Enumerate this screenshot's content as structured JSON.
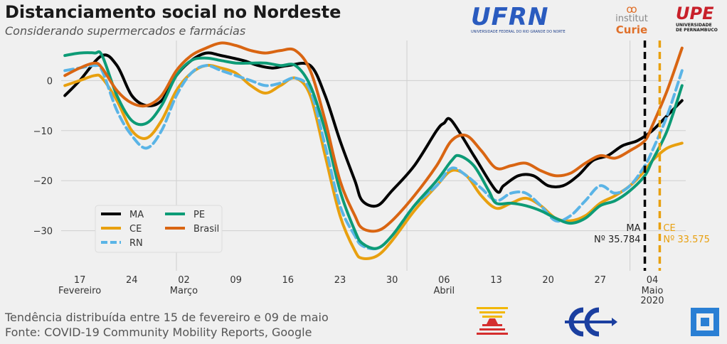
{
  "header": {
    "title": "Distanciamento social no Nordeste",
    "subtitle": "Considerando supermercados e farmácias"
  },
  "footer": {
    "line1": "Tendência distribuída entre 15 de fevereiro e 09 de maio",
    "line2": "Fonte: COVID-19 Community Mobility Reports, Google"
  },
  "logos": {
    "ufrn": {
      "mark": "UFRN",
      "caption": "UNIVERSIDADE FEDERAL DO RIO GRANDE DO NORTE"
    },
    "curie": {
      "icon": "ꝏ",
      "line1": "institut",
      "line2": "Curie"
    },
    "upe": {
      "mark": "UPE",
      "line1": "UNIVERSIDADE",
      "line2": "DE PERNAMBUCO"
    }
  },
  "chart_data": {
    "type": "line",
    "title": "Distanciamento social no Nordeste",
    "xlim": [
      -0.5,
      83.5
    ],
    "ylim": [
      -38,
      8
    ],
    "yticks": [
      0,
      -10,
      -20,
      -30
    ],
    "ytick_labels": [
      "0",
      "−10",
      "−20",
      "−30"
    ],
    "xticks": [
      {
        "day": 2,
        "label": "17",
        "sub": "Fevereiro"
      },
      {
        "day": 9,
        "label": "24",
        "sub": ""
      },
      {
        "day": 16,
        "label": "02",
        "sub": "Março"
      },
      {
        "day": 23,
        "label": "09",
        "sub": ""
      },
      {
        "day": 30,
        "label": "16",
        "sub": ""
      },
      {
        "day": 37,
        "label": "23",
        "sub": ""
      },
      {
        "day": 44,
        "label": "30",
        "sub": ""
      },
      {
        "day": 51,
        "label": "06",
        "sub": "Abril"
      },
      {
        "day": 58,
        "label": "13",
        "sub": ""
      },
      {
        "day": 65,
        "label": "20",
        "sub": ""
      },
      {
        "day": 72,
        "label": "27",
        "sub": ""
      },
      {
        "day": 79,
        "label": "04",
        "sub": "Maio\n2020"
      }
    ],
    "month_dividers": [
      15,
      46,
      76
    ],
    "x_start": "2020-02-15",
    "series": [
      {
        "name": "MA",
        "color": "#000000",
        "dash": false,
        "points": [
          [
            0,
            -3
          ],
          [
            2,
            0
          ],
          [
            5,
            5
          ],
          [
            7,
            3
          ],
          [
            9,
            -3
          ],
          [
            11,
            -5
          ],
          [
            13,
            -4
          ],
          [
            15,
            1
          ],
          [
            17,
            4
          ],
          [
            19,
            5.5
          ],
          [
            21,
            5
          ],
          [
            24,
            4
          ],
          [
            26,
            3
          ],
          [
            28,
            2.5
          ],
          [
            30,
            3
          ],
          [
            33,
            3
          ],
          [
            35,
            -3
          ],
          [
            37,
            -12
          ],
          [
            39,
            -20
          ],
          [
            40,
            -24
          ],
          [
            42,
            -25
          ],
          [
            44,
            -22
          ],
          [
            47,
            -17
          ],
          [
            50,
            -10
          ],
          [
            51,
            -8.5
          ],
          [
            52,
            -8
          ],
          [
            55,
            -15
          ],
          [
            58,
            -22
          ],
          [
            59,
            -21
          ],
          [
            61,
            -19
          ],
          [
            63,
            -19
          ],
          [
            65,
            -21
          ],
          [
            67,
            -21
          ],
          [
            69,
            -19
          ],
          [
            71,
            -16
          ],
          [
            73,
            -15
          ],
          [
            75,
            -13
          ],
          [
            77,
            -12
          ],
          [
            79,
            -10
          ],
          [
            81,
            -7
          ],
          [
            83,
            -4
          ]
        ]
      },
      {
        "name": "CE",
        "color": "#e8a00f",
        "dash": false,
        "points": [
          [
            0,
            -1
          ],
          [
            2,
            0
          ],
          [
            4,
            1
          ],
          [
            5,
            0.5
          ],
          [
            7,
            -4
          ],
          [
            9,
            -10
          ],
          [
            11,
            -11.5
          ],
          [
            13,
            -8
          ],
          [
            15,
            -2
          ],
          [
            17,
            1.5
          ],
          [
            19,
            3
          ],
          [
            21,
            2.5
          ],
          [
            23,
            1.5
          ],
          [
            25,
            -1
          ],
          [
            27,
            -2.5
          ],
          [
            29,
            -1
          ],
          [
            31,
            0.5
          ],
          [
            33,
            -3
          ],
          [
            35,
            -15
          ],
          [
            37,
            -27
          ],
          [
            39,
            -34
          ],
          [
            40,
            -35.5
          ],
          [
            42,
            -35
          ],
          [
            44,
            -32
          ],
          [
            47,
            -26
          ],
          [
            50,
            -21
          ],
          [
            52,
            -18
          ],
          [
            54,
            -19
          ],
          [
            56,
            -23
          ],
          [
            58,
            -25.5
          ],
          [
            60,
            -24.5
          ],
          [
            62,
            -23.5
          ],
          [
            64,
            -25
          ],
          [
            66,
            -27.5
          ],
          [
            68,
            -28
          ],
          [
            70,
            -27
          ],
          [
            72,
            -24.5
          ],
          [
            74,
            -23
          ],
          [
            76,
            -21
          ],
          [
            78,
            -18
          ],
          [
            79,
            -16
          ],
          [
            81,
            -13.5
          ],
          [
            83,
            -12.5
          ]
        ]
      },
      {
        "name": "RN",
        "color": "#5ab4e6",
        "dash": true,
        "points": [
          [
            0,
            2
          ],
          [
            2,
            2.5
          ],
          [
            4,
            3
          ],
          [
            5,
            2
          ],
          [
            7,
            -6
          ],
          [
            9,
            -11
          ],
          [
            11,
            -13.5
          ],
          [
            13,
            -10
          ],
          [
            15,
            -3
          ],
          [
            17,
            1.5
          ],
          [
            19,
            3
          ],
          [
            21,
            2
          ],
          [
            23,
            1
          ],
          [
            25,
            0
          ],
          [
            27,
            -1
          ],
          [
            29,
            -0.5
          ],
          [
            31,
            0.5
          ],
          [
            33,
            -2
          ],
          [
            35,
            -13
          ],
          [
            37,
            -25
          ],
          [
            39,
            -31
          ],
          [
            40,
            -33
          ],
          [
            42,
            -33.5
          ],
          [
            44,
            -31
          ],
          [
            47,
            -25
          ],
          [
            50,
            -21
          ],
          [
            52,
            -17.5
          ],
          [
            54,
            -19
          ],
          [
            56,
            -21.5
          ],
          [
            58,
            -24
          ],
          [
            60,
            -22.5
          ],
          [
            62,
            -22.5
          ],
          [
            64,
            -25
          ],
          [
            66,
            -28
          ],
          [
            68,
            -27
          ],
          [
            70,
            -24
          ],
          [
            72,
            -21
          ],
          [
            74,
            -22.5
          ],
          [
            76,
            -21
          ],
          [
            78,
            -17
          ],
          [
            79,
            -14
          ],
          [
            81,
            -7
          ],
          [
            83,
            2
          ]
        ]
      },
      {
        "name": "PE",
        "color": "#0d9b76",
        "dash": false,
        "points": [
          [
            0,
            5
          ],
          [
            2,
            5.5
          ],
          [
            4,
            5.5
          ],
          [
            5,
            5
          ],
          [
            7,
            -3
          ],
          [
            9,
            -8
          ],
          [
            11,
            -8.5
          ],
          [
            13,
            -5
          ],
          [
            15,
            1
          ],
          [
            17,
            4
          ],
          [
            19,
            4.5
          ],
          [
            21,
            4
          ],
          [
            23,
            3.5
          ],
          [
            25,
            3.5
          ],
          [
            27,
            3.5
          ],
          [
            29,
            3
          ],
          [
            31,
            3
          ],
          [
            33,
            -1
          ],
          [
            35,
            -10
          ],
          [
            37,
            -22
          ],
          [
            39,
            -30
          ],
          [
            40,
            -32.5
          ],
          [
            42,
            -33.5
          ],
          [
            44,
            -31
          ],
          [
            47,
            -25
          ],
          [
            50,
            -20
          ],
          [
            52,
            -16
          ],
          [
            53,
            -15
          ],
          [
            55,
            -17
          ],
          [
            57,
            -22
          ],
          [
            58,
            -24.5
          ],
          [
            60,
            -24.5
          ],
          [
            62,
            -25
          ],
          [
            64,
            -26
          ],
          [
            66,
            -27.5
          ],
          [
            68,
            -28.5
          ],
          [
            70,
            -27.5
          ],
          [
            72,
            -25
          ],
          [
            74,
            -24
          ],
          [
            76,
            -22
          ],
          [
            78,
            -19
          ],
          [
            79,
            -16
          ],
          [
            81,
            -10
          ],
          [
            83,
            -1
          ]
        ]
      },
      {
        "name": "Brasil",
        "color": "#d96512",
        "dash": false,
        "points": [
          [
            0,
            1
          ],
          [
            2,
            2.5
          ],
          [
            4,
            3.5
          ],
          [
            5,
            2.5
          ],
          [
            7,
            -2
          ],
          [
            9,
            -4.5
          ],
          [
            11,
            -5
          ],
          [
            13,
            -3
          ],
          [
            15,
            2
          ],
          [
            17,
            5
          ],
          [
            19,
            6.5
          ],
          [
            21,
            7.5
          ],
          [
            23,
            7
          ],
          [
            25,
            6
          ],
          [
            27,
            5.5
          ],
          [
            29,
            6
          ],
          [
            31,
            6
          ],
          [
            33,
            2
          ],
          [
            35,
            -8
          ],
          [
            37,
            -20
          ],
          [
            39,
            -27
          ],
          [
            40,
            -29.5
          ],
          [
            42,
            -30
          ],
          [
            44,
            -28
          ],
          [
            47,
            -23
          ],
          [
            50,
            -17
          ],
          [
            52,
            -12
          ],
          [
            54,
            -11
          ],
          [
            56,
            -14
          ],
          [
            58,
            -17.5
          ],
          [
            60,
            -17
          ],
          [
            62,
            -16.5
          ],
          [
            64,
            -18
          ],
          [
            66,
            -19
          ],
          [
            68,
            -18.5
          ],
          [
            70,
            -16.5
          ],
          [
            72,
            -15
          ],
          [
            74,
            -15.5
          ],
          [
            76,
            -14
          ],
          [
            78,
            -12
          ],
          [
            79,
            -9
          ],
          [
            81,
            -2
          ],
          [
            83,
            6.5
          ]
        ]
      }
    ],
    "events": [
      {
        "day": 78,
        "color": "#000000",
        "label1": "MA",
        "label2": "Nº 35.784",
        "align": "right"
      },
      {
        "day": 80,
        "color": "#e8a00f",
        "label1": "CE",
        "label2": "Nº 33.575",
        "align": "left"
      }
    ],
    "legend": {
      "placement": "lower-left",
      "columns": [
        [
          "MA",
          "CE",
          "RN"
        ],
        [
          "PE",
          "Brasil"
        ]
      ]
    }
  }
}
